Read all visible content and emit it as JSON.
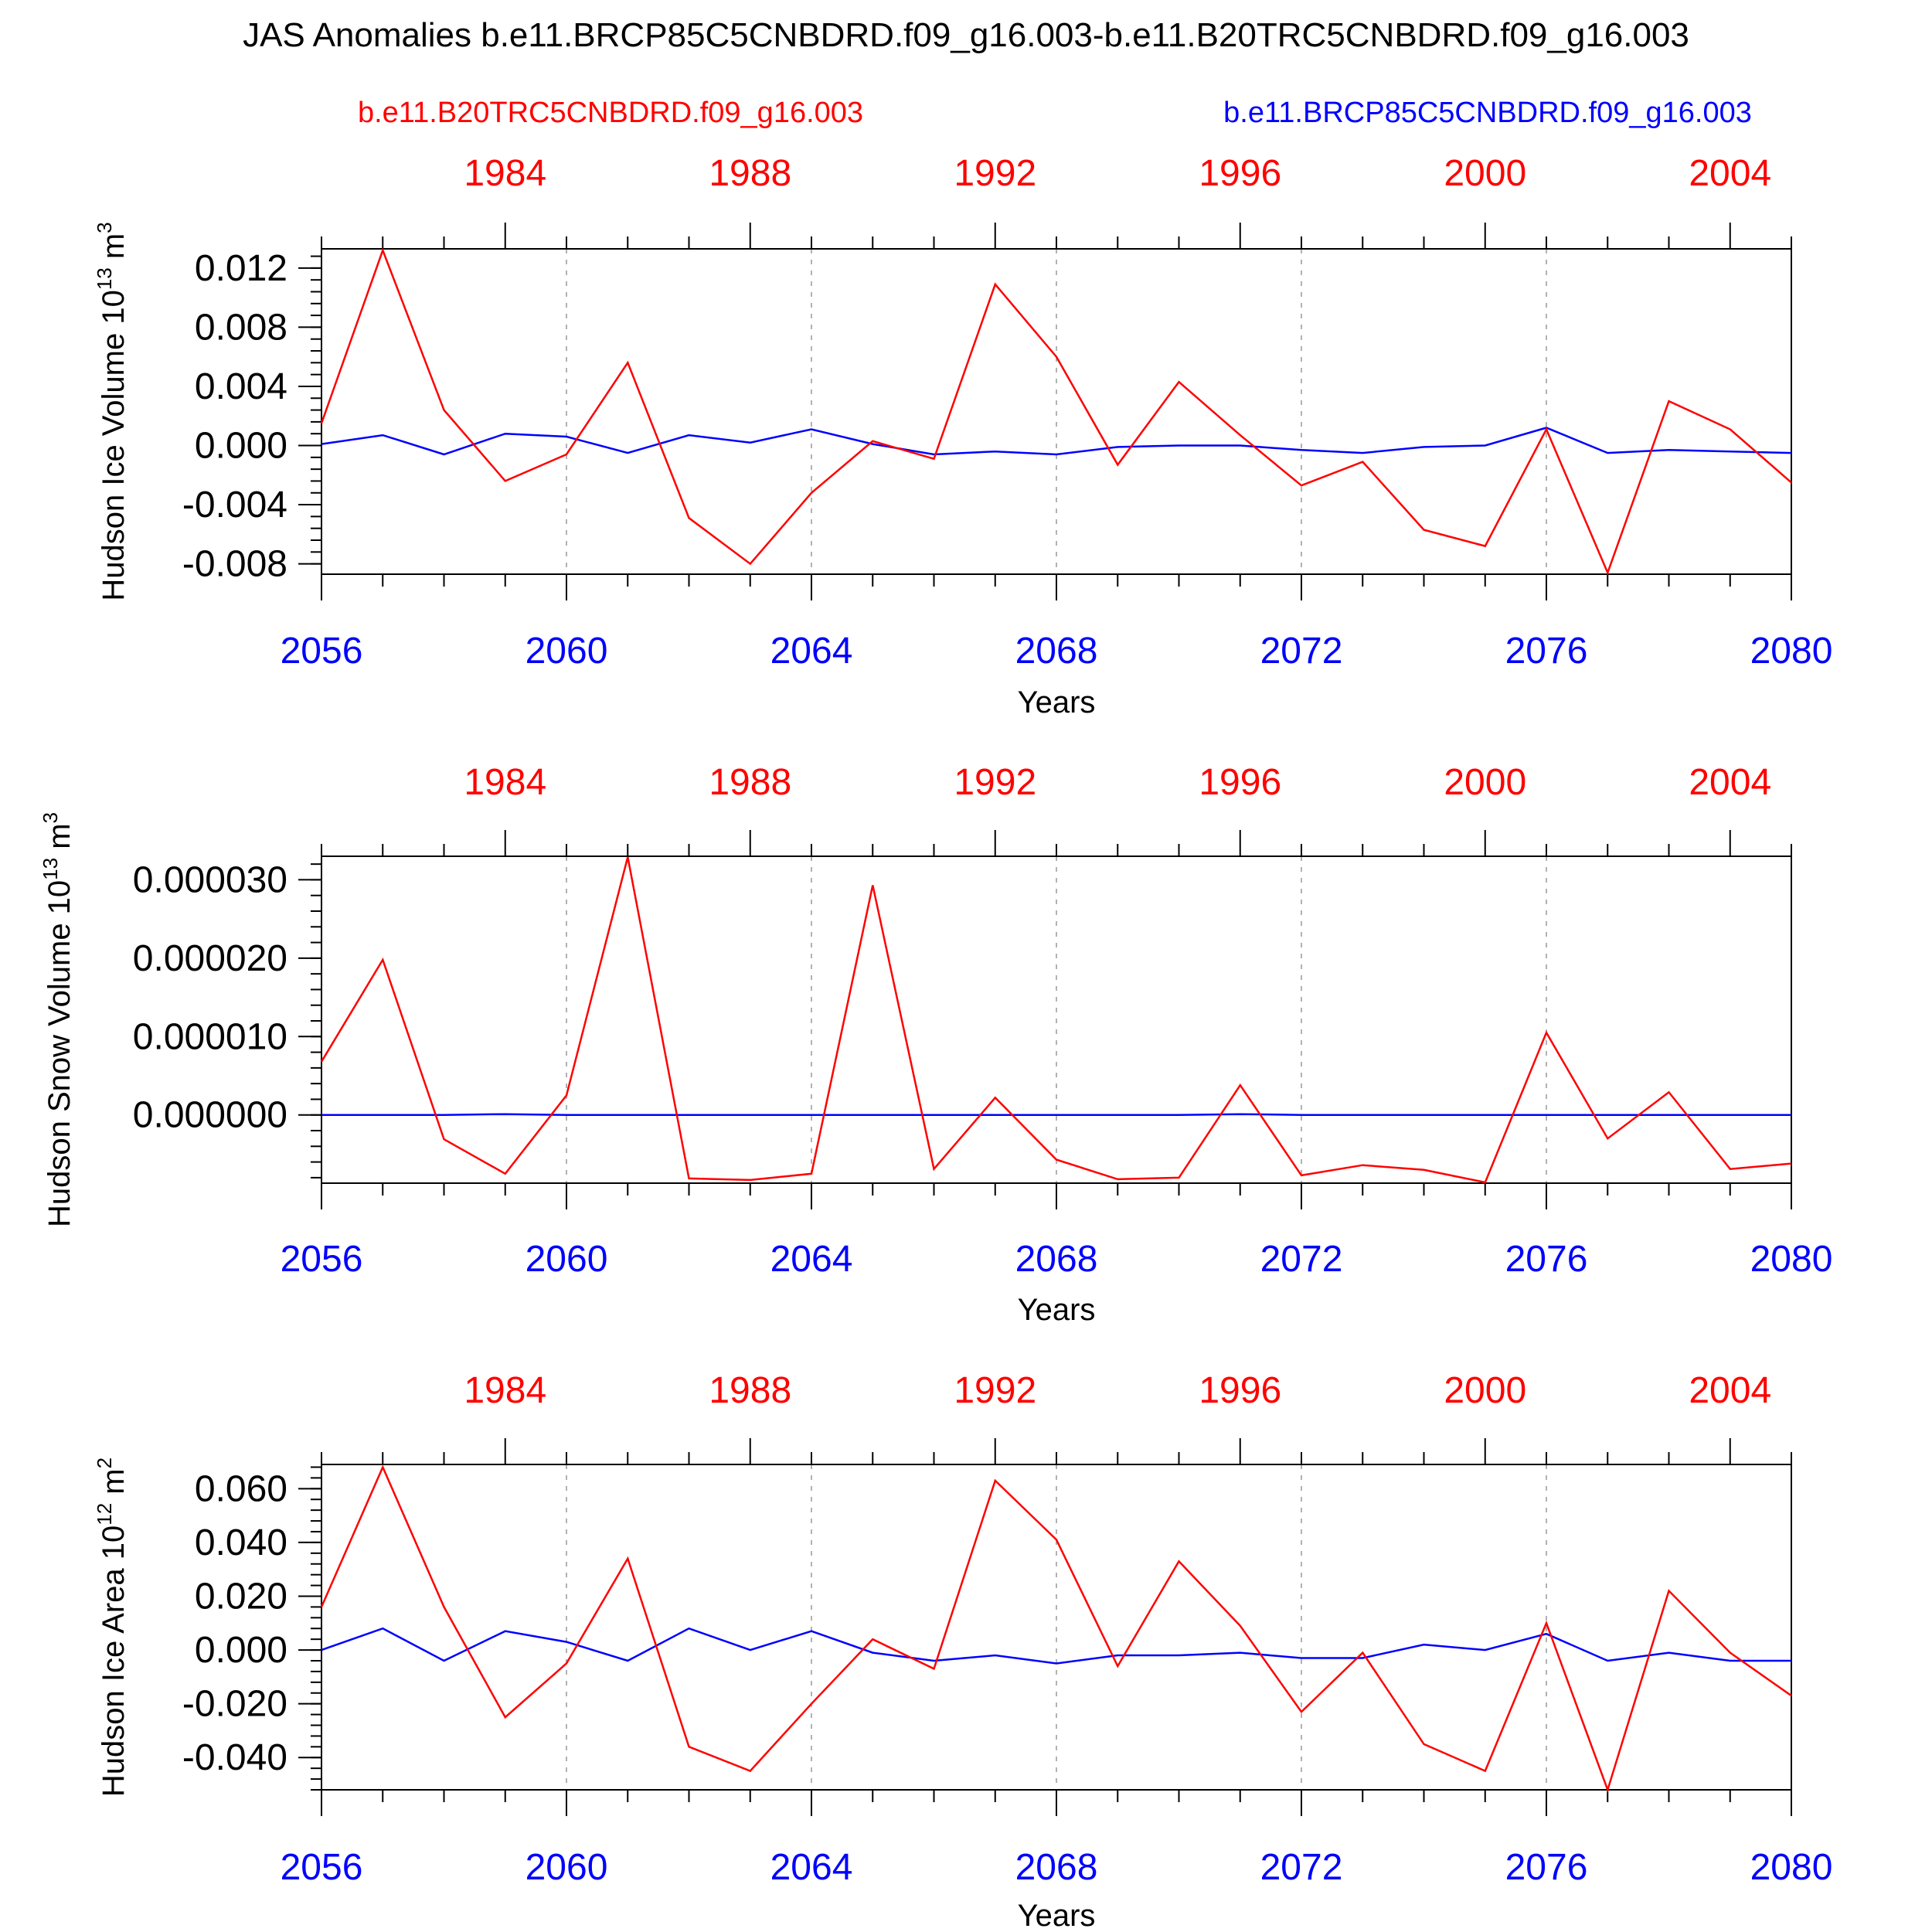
{
  "title": "JAS Anomalies b.e11.BRCP85C5CNBDRD.f09_g16.003-b.e11.B20TRC5CNBDRD.f09_g16.003",
  "legend": {
    "red_name": "b.e11.B20TRC5CNBDRD.f09_g16.003",
    "blue_name": "b.e11.BRCP85C5CNBDRD.f09_g16.003"
  },
  "colors": {
    "red": "#ff0000",
    "blue": "#0000ff",
    "axis": "#000000",
    "grid": "#999999"
  },
  "chart_data": [
    {
      "type": "line",
      "ylabel": "Hudson Ice Volume 10^13 m^3",
      "ylabel_main": "Hudson Ice Volume 10",
      "ylabel_exp": "13",
      "ylabel_unit": "m",
      "ylabel_unit_exp": "3",
      "xlabel": "Years",
      "ylim": [
        -0.0087,
        0.0133
      ],
      "yticks": [
        {
          "v": 0.012,
          "label": "0.012"
        },
        {
          "v": 0.008,
          "label": "0.008"
        },
        {
          "v": 0.004,
          "label": "0.004"
        },
        {
          "v": 0.0,
          "label": "0.000"
        },
        {
          "v": -0.004,
          "label": "-0.004"
        },
        {
          "v": -0.008,
          "label": "-0.008"
        }
      ],
      "x": [
        2056,
        2057,
        2058,
        2059,
        2060,
        2061,
        2062,
        2063,
        2064,
        2065,
        2066,
        2067,
        2068,
        2069,
        2070,
        2071,
        2072,
        2073,
        2074,
        2075,
        2076,
        2077,
        2078,
        2079,
        2080
      ],
      "series": [
        {
          "color": "red",
          "values": [
            0.0015,
            0.0132,
            0.0024,
            -0.0024,
            -0.0006,
            0.0056,
            -0.0049,
            -0.008,
            -0.0032,
            0.0003,
            -0.0009,
            0.0109,
            0.006,
            -0.0013,
            0.0043,
            0.0007,
            -0.0027,
            -0.0011,
            -0.0057,
            -0.0068,
            0.0011,
            -0.0086,
            0.003,
            0.0011,
            -0.0025
          ]
        },
        {
          "color": "blue",
          "values": [
            0.0001,
            0.0007,
            -0.0006,
            0.0008,
            0.0006,
            -0.0005,
            0.0007,
            0.0002,
            0.0011,
            0.0001,
            -0.0006,
            -0.0004,
            -0.0006,
            -0.0001,
            0.0,
            0.0,
            -0.0003,
            -0.0005,
            -0.0001,
            0.0,
            0.0012,
            -0.0005,
            -0.0003,
            -0.0004,
            -0.0005
          ]
        }
      ]
    },
    {
      "type": "line",
      "ylabel": "Hudson Snow Volume 10^13 m^3",
      "ylabel_main": "Hudson Snow Volume 10",
      "ylabel_exp": "13",
      "ylabel_unit": "m",
      "ylabel_unit_exp": "3",
      "xlabel": "Years",
      "ylim": [
        -8.7e-06,
        3.3e-05
      ],
      "yticks": [
        {
          "v": 3e-05,
          "label": "0.000030"
        },
        {
          "v": 2e-05,
          "label": "0.000020"
        },
        {
          "v": 1e-05,
          "label": "0.000010"
        },
        {
          "v": 0.0,
          "label": "0.000000"
        }
      ],
      "x": [
        2056,
        2057,
        2058,
        2059,
        2060,
        2061,
        2062,
        2063,
        2064,
        2065,
        2066,
        2067,
        2068,
        2069,
        2070,
        2071,
        2072,
        2073,
        2074,
        2075,
        2076,
        2077,
        2078,
        2079,
        2080
      ],
      "series": [
        {
          "color": "red",
          "values": [
            6.8e-06,
            1.98e-05,
            -3.1e-06,
            -7.5e-06,
            2.5e-06,
            3.29e-05,
            -8.1e-06,
            -8.3e-06,
            -7.5e-06,
            2.93e-05,
            -6.9e-06,
            2.2e-06,
            -5.7e-06,
            -8.2e-06,
            -8e-06,
            3.8e-06,
            -7.7e-06,
            -6.4e-06,
            -7e-06,
            -8.6e-06,
            1.05e-05,
            -3e-06,
            2.9e-06,
            -6.9e-06,
            -6.2e-06
          ]
        },
        {
          "color": "blue",
          "values": [
            0.0,
            0.0,
            0.0,
            1e-07,
            0.0,
            0.0,
            0.0,
            0.0,
            0.0,
            0.0,
            0.0,
            0.0,
            0.0,
            0.0,
            0.0,
            1e-07,
            0.0,
            0.0,
            0.0,
            0.0,
            0.0,
            0.0,
            0.0,
            0.0,
            0.0
          ]
        }
      ]
    },
    {
      "type": "line",
      "ylabel": "Hudson Ice Area 10^12 m^2",
      "ylabel_main": "Hudson Ice Area 10",
      "ylabel_exp": "12",
      "ylabel_unit": "m",
      "ylabel_unit_exp": "2",
      "xlabel": "Years",
      "ylim": [
        -0.052,
        0.069
      ],
      "yticks": [
        {
          "v": 0.06,
          "label": "0.060"
        },
        {
          "v": 0.04,
          "label": "0.040"
        },
        {
          "v": 0.02,
          "label": "0.020"
        },
        {
          "v": 0.0,
          "label": "0.000"
        },
        {
          "v": -0.02,
          "label": "-0.020"
        },
        {
          "v": -0.04,
          "label": "-0.040"
        }
      ],
      "x": [
        2056,
        2057,
        2058,
        2059,
        2060,
        2061,
        2062,
        2063,
        2064,
        2065,
        2066,
        2067,
        2068,
        2069,
        2070,
        2071,
        2072,
        2073,
        2074,
        2075,
        2076,
        2077,
        2078,
        2079,
        2080
      ],
      "series": [
        {
          "color": "red",
          "values": [
            0.016,
            0.068,
            0.016,
            -0.025,
            -0.005,
            0.034,
            -0.036,
            -0.045,
            -0.02,
            0.004,
            -0.007,
            0.063,
            0.041,
            -0.006,
            0.033,
            0.009,
            -0.023,
            -0.001,
            -0.035,
            -0.045,
            0.01,
            -0.052,
            0.022,
            -0.001,
            -0.017
          ]
        },
        {
          "color": "blue",
          "values": [
            0.0,
            0.008,
            -0.004,
            0.007,
            0.003,
            -0.004,
            0.008,
            0.0,
            0.007,
            -0.001,
            -0.004,
            -0.002,
            -0.005,
            -0.002,
            -0.002,
            -0.001,
            -0.003,
            -0.003,
            0.002,
            0.0,
            0.006,
            -0.004,
            -0.001,
            -0.004,
            -0.004
          ]
        }
      ]
    }
  ],
  "bottom_axis": {
    "color": "blue",
    "labels": [
      {
        "v": 2056,
        "label": "2056"
      },
      {
        "v": 2060,
        "label": "2060"
      },
      {
        "v": 2064,
        "label": "2064"
      },
      {
        "v": 2068,
        "label": "2068"
      },
      {
        "v": 2072,
        "label": "2072"
      },
      {
        "v": 2076,
        "label": "2076"
      },
      {
        "v": 2080,
        "label": "2080"
      }
    ],
    "range": [
      2056,
      2080
    ]
  },
  "top_axis": {
    "color": "red",
    "labels": [
      {
        "v": 1984,
        "label": "1984"
      },
      {
        "v": 1988,
        "label": "1988"
      },
      {
        "v": 1992,
        "label": "1992"
      },
      {
        "v": 1996,
        "label": "1996"
      },
      {
        "v": 2000,
        "label": "2000"
      },
      {
        "v": 2004,
        "label": "2004"
      }
    ],
    "range": [
      1981,
      2005
    ]
  }
}
